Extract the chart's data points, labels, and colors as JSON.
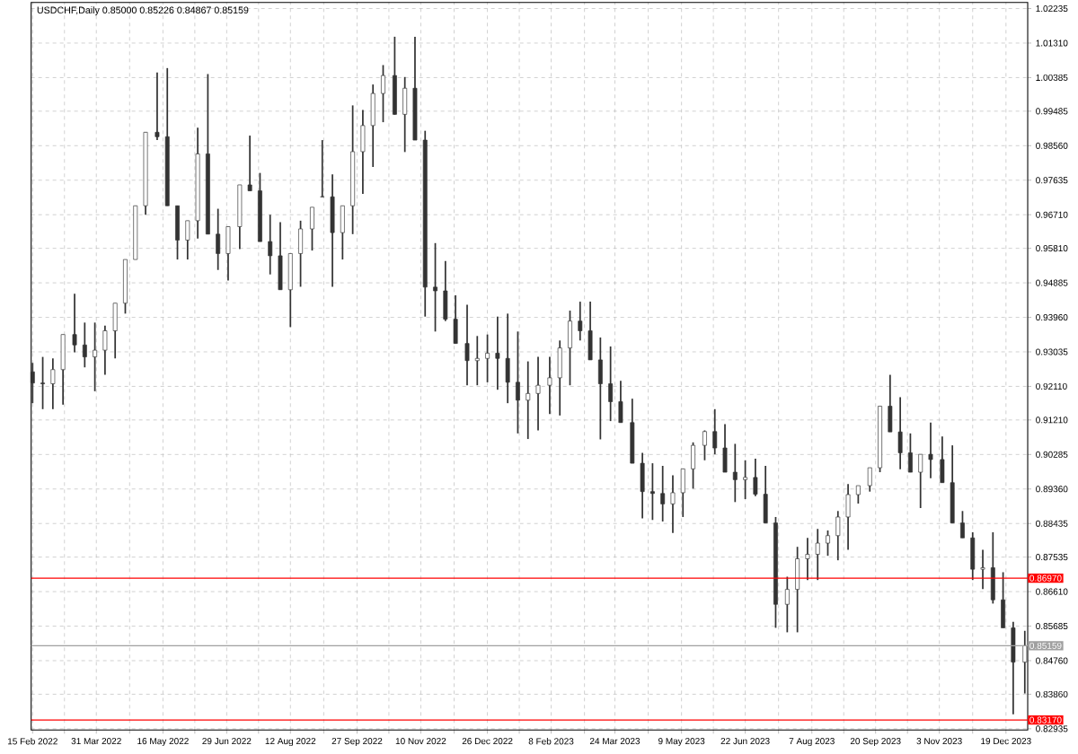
{
  "chart_data": {
    "type": "candlestick",
    "title": "USDCHF,Daily  0.85000 0.85226 0.84867 0.85159",
    "color": "#333333",
    "grid": true,
    "x": [
      "2022-02-15",
      "2022-02-22",
      "2022-03-01",
      "2022-03-08",
      "2022-03-16",
      "2022-03-23",
      "2022-03-30",
      "2022-04-06",
      "2022-04-13",
      "2022-04-20",
      "2022-04-27",
      "2022-05-04",
      "2022-05-12",
      "2022-05-19",
      "2022-05-26",
      "2022-06-02",
      "2022-06-09",
      "2022-06-16",
      "2022-06-23",
      "2022-06-30",
      "2022-07-08",
      "2022-07-15",
      "2022-07-22",
      "2022-07-29",
      "2022-08-05",
      "2022-08-12",
      "2022-08-19",
      "2022-08-27",
      "2022-09-03",
      "2022-09-10",
      "2022-09-17",
      "2022-09-24",
      "2022-10-01",
      "2022-10-08",
      "2022-10-15",
      "2022-10-23",
      "2022-10-30",
      "2022-11-06",
      "2022-11-13",
      "2022-11-20",
      "2022-11-27",
      "2022-12-04",
      "2022-12-12",
      "2022-12-19",
      "2022-12-26",
      "2023-01-02",
      "2023-01-09",
      "2023-01-16",
      "2023-01-23",
      "2023-01-30",
      "2023-02-07",
      "2023-02-14",
      "2023-02-21",
      "2023-02-28",
      "2023-03-07",
      "2023-03-14",
      "2023-03-21",
      "2023-03-28",
      "2023-04-05",
      "2023-04-12",
      "2023-04-19",
      "2023-04-26",
      "2023-05-03",
      "2023-05-10",
      "2023-05-17",
      "2023-05-25",
      "2023-06-01",
      "2023-06-08",
      "2023-06-15",
      "2023-06-22",
      "2023-06-29",
      "2023-07-06",
      "2023-07-13",
      "2023-07-21",
      "2023-07-28",
      "2023-08-04",
      "2023-08-11",
      "2023-08-18",
      "2023-08-25",
      "2023-09-01",
      "2023-09-08",
      "2023-09-16",
      "2023-09-23",
      "2023-09-30",
      "2023-10-07",
      "2023-10-14",
      "2023-10-21",
      "2023-10-28",
      "2023-11-05",
      "2023-11-12",
      "2023-11-19",
      "2023-11-26",
      "2023-12-03",
      "2023-12-10",
      "2023-12-17",
      "2023-12-24",
      "2024-01-01"
    ],
    "ohlc": [
      [
        0.925,
        0.9274,
        0.9166,
        0.922
      ],
      [
        0.922,
        0.929,
        0.915,
        0.9218
      ],
      [
        0.9218,
        0.9286,
        0.915,
        0.9256
      ],
      [
        0.9256,
        0.935,
        0.9162,
        0.935
      ],
      [
        0.935,
        0.9459,
        0.9302,
        0.9322
      ],
      [
        0.9322,
        0.9382,
        0.9262,
        0.929
      ],
      [
        0.929,
        0.9382,
        0.9198,
        0.9308
      ],
      [
        0.9308,
        0.9374,
        0.9242,
        0.936
      ],
      [
        0.936,
        0.9434,
        0.9286,
        0.9434
      ],
      [
        0.9434,
        0.9551,
        0.9406,
        0.9551
      ],
      [
        0.9551,
        0.9695,
        0.9551,
        0.9695
      ],
      [
        0.9695,
        0.9892,
        0.9671,
        0.9892
      ],
      [
        0.9892,
        1.0052,
        0.9871,
        0.988
      ],
      [
        0.988,
        1.0064,
        0.9695,
        0.9695
      ],
      [
        0.9695,
        0.9695,
        0.9551,
        0.9603
      ],
      [
        0.9603,
        0.9655,
        0.9551,
        0.9655
      ],
      [
        0.9655,
        0.9904,
        0.9607,
        0.9834
      ],
      [
        0.9834,
        1.0048,
        0.9619,
        0.9619
      ],
      [
        0.9619,
        0.9687,
        0.9523,
        0.9567
      ],
      [
        0.9567,
        0.9639,
        0.9495,
        0.9639
      ],
      [
        0.9639,
        0.9751,
        0.9579,
        0.9751
      ],
      [
        0.9751,
        0.9883,
        0.9735,
        0.9735
      ],
      [
        0.9735,
        0.9783,
        0.9599,
        0.9599
      ],
      [
        0.9599,
        0.9671,
        0.9511,
        0.9561
      ],
      [
        0.9561,
        0.9651,
        0.947,
        0.947
      ],
      [
        0.947,
        0.9567,
        0.937,
        0.9567
      ],
      [
        0.9567,
        0.9655,
        0.9478,
        0.9633
      ],
      [
        0.9633,
        0.9691,
        0.9575,
        0.9691
      ],
      [
        0.9719,
        0.9871,
        0.9719,
        0.9719
      ],
      [
        0.9719,
        0.9779,
        0.9478,
        0.9623
      ],
      [
        0.9623,
        0.9695,
        0.9551,
        0.9695
      ],
      [
        0.9695,
        0.9964,
        0.9619,
        0.984
      ],
      [
        0.984,
        0.9952,
        0.9727,
        0.991
      ],
      [
        0.991,
        1.002,
        0.9799,
        0.9996
      ],
      [
        0.9996,
        1.0072,
        0.9919,
        1.0044
      ],
      [
        1.0044,
        1.0148,
        0.9939,
        0.994
      ],
      [
        0.994,
        1.004,
        0.9839,
        1.001
      ],
      [
        1.001,
        1.0148,
        0.9871,
        0.9871
      ],
      [
        0.9871,
        0.9896,
        0.9398,
        0.9477
      ],
      [
        0.9477,
        0.9595,
        0.9358,
        0.9467
      ],
      [
        0.9467,
        0.9547,
        0.9386,
        0.9391
      ],
      [
        0.9391,
        0.9455,
        0.9326,
        0.9326
      ],
      [
        0.9326,
        0.943,
        0.9214,
        0.928
      ],
      [
        0.928,
        0.9346,
        0.9214,
        0.9286
      ],
      [
        0.9286,
        0.935,
        0.9222,
        0.93
      ],
      [
        0.93,
        0.9398,
        0.9202,
        0.9286
      ],
      [
        0.9286,
        0.9406,
        0.9166,
        0.9222
      ],
      [
        0.9222,
        0.9358,
        0.9085,
        0.9174
      ],
      [
        0.9174,
        0.9278,
        0.907,
        0.9192
      ],
      [
        0.9192,
        0.929,
        0.9093,
        0.9214
      ],
      [
        0.9214,
        0.929,
        0.9137,
        0.9234
      ],
      [
        0.9234,
        0.9334,
        0.9133,
        0.9314
      ],
      [
        0.9314,
        0.9414,
        0.9214,
        0.9386
      ],
      [
        0.9386,
        0.9438,
        0.9334,
        0.936
      ],
      [
        0.936,
        0.9438,
        0.9282,
        0.9282
      ],
      [
        0.9282,
        0.9342,
        0.9069,
        0.9218
      ],
      [
        0.9218,
        0.9318,
        0.9118,
        0.917
      ],
      [
        0.917,
        0.9226,
        0.9114,
        0.9114
      ],
      [
        0.9114,
        0.9178,
        0.9005,
        0.9005
      ],
      [
        0.9005,
        0.9033,
        0.8857,
        0.8929
      ],
      [
        0.8929,
        0.9005,
        0.8853,
        0.8924
      ],
      [
        0.8924,
        0.8998,
        0.8849,
        0.8896
      ],
      [
        0.8896,
        0.8973,
        0.8818,
        0.8926
      ],
      [
        0.8926,
        0.899,
        0.8861,
        0.899
      ],
      [
        0.899,
        0.9061,
        0.8937,
        0.9053
      ],
      [
        0.9053,
        0.9093,
        0.9013,
        0.909
      ],
      [
        0.909,
        0.915,
        0.9029,
        0.9046
      ],
      [
        0.9046,
        0.911,
        0.8981,
        0.8981
      ],
      [
        0.8981,
        0.9057,
        0.8901,
        0.8961
      ],
      [
        0.8961,
        0.9013,
        0.8909,
        0.8967
      ],
      [
        0.8967,
        0.9017,
        0.8917,
        0.8922
      ],
      [
        0.8922,
        0.8998,
        0.8845,
        0.8845
      ],
      [
        0.8845,
        0.8861,
        0.8564,
        0.8627
      ],
      [
        0.8627,
        0.8701,
        0.8552,
        0.8667
      ],
      [
        0.8667,
        0.8781,
        0.8552,
        0.8749
      ],
      [
        0.8749,
        0.8805,
        0.8692,
        0.8761
      ],
      [
        0.8761,
        0.8829,
        0.8692,
        0.8791
      ],
      [
        0.8791,
        0.8825,
        0.8757,
        0.8811
      ],
      [
        0.8811,
        0.8877,
        0.8745,
        0.8861
      ],
      [
        0.8861,
        0.8949,
        0.8773,
        0.8921
      ],
      [
        0.8921,
        0.8945,
        0.8897,
        0.8945
      ],
      [
        0.8945,
        0.8993,
        0.8929,
        0.8993
      ],
      [
        0.8993,
        0.9158,
        0.8981,
        0.9158
      ],
      [
        0.9158,
        0.9242,
        0.9089,
        0.9089
      ],
      [
        0.9089,
        0.9182,
        0.8989,
        0.9033
      ],
      [
        0.9033,
        0.9085,
        0.8981,
        0.8981
      ],
      [
        0.8981,
        0.9029,
        0.8885,
        0.9029
      ],
      [
        0.9029,
        0.9114,
        0.8965,
        0.9015
      ],
      [
        0.9015,
        0.9077,
        0.8953,
        0.8953
      ],
      [
        0.8953,
        0.9053,
        0.8845,
        0.8845
      ],
      [
        0.8845,
        0.8877,
        0.8805,
        0.8805
      ],
      [
        0.8805,
        0.882,
        0.8692,
        0.8721
      ],
      [
        0.8721,
        0.8773,
        0.8668,
        0.8725
      ],
      [
        0.8725,
        0.882,
        0.8629,
        0.8639
      ],
      [
        0.8639,
        0.8713,
        0.8564,
        0.8564
      ],
      [
        0.8564,
        0.858,
        0.8332,
        0.8472
      ],
      [
        0.8472,
        0.8556,
        0.8388,
        0.8516
      ]
    ],
    "xlim": [
      "2022-02-14",
      "2024-01-03"
    ],
    "xticks": [
      {
        "value": "2022-02-15",
        "label": "15 Feb 2022"
      },
      {
        "value": "2022-03-09",
        "label": null
      },
      {
        "value": "2022-03-31",
        "label": "31 Mar 2022"
      },
      {
        "value": "2022-04-23",
        "label": null
      },
      {
        "value": "2022-05-16",
        "label": "16 May 2022"
      },
      {
        "value": "2022-06-07",
        "label": null
      },
      {
        "value": "2022-06-29",
        "label": "29 Jun 2022"
      },
      {
        "value": "2022-07-21",
        "label": null
      },
      {
        "value": "2022-08-12",
        "label": "12 Aug 2022"
      },
      {
        "value": "2022-09-04",
        "label": null
      },
      {
        "value": "2022-09-27",
        "label": "27 Sep 2022"
      },
      {
        "value": "2022-10-19",
        "label": null
      },
      {
        "value": "2022-11-10",
        "label": "10 Nov 2022"
      },
      {
        "value": "2022-12-03",
        "label": null
      },
      {
        "value": "2022-12-26",
        "label": "26 Dec 2022"
      },
      {
        "value": "2023-01-17",
        "label": null
      },
      {
        "value": "2023-02-08",
        "label": "8 Feb 2023"
      },
      {
        "value": "2023-03-03",
        "label": null
      },
      {
        "value": "2023-03-24",
        "label": "24 Mar 2023"
      },
      {
        "value": "2023-04-16",
        "label": null
      },
      {
        "value": "2023-05-09",
        "label": "9 May 2023"
      },
      {
        "value": "2023-05-31",
        "label": null
      },
      {
        "value": "2023-06-22",
        "label": "22 Jun 2023"
      },
      {
        "value": "2023-07-15",
        "label": null
      },
      {
        "value": "2023-08-07",
        "label": "7 Aug 2023"
      },
      {
        "value": "2023-08-29",
        "label": null
      },
      {
        "value": "2023-09-20",
        "label": "20 Sep 2023"
      },
      {
        "value": "2023-10-12",
        "label": null
      },
      {
        "value": "2023-11-03",
        "label": "3 Nov 2023"
      },
      {
        "value": "2023-11-26",
        "label": null
      },
      {
        "value": "2023-12-19",
        "label": "19 Dec 2023"
      }
    ],
    "ylim": [
      0.829,
      1.024
    ],
    "yticks": [
      {
        "value": 0.82935,
        "label": "0.82935"
      },
      {
        "value": 0.8386,
        "label": "0.83860"
      },
      {
        "value": 0.8476,
        "label": "0.84760"
      },
      {
        "value": 0.85685,
        "label": "0.85685"
      },
      {
        "value": 0.8661,
        "label": "0.86610"
      },
      {
        "value": 0.87535,
        "label": "0.87535"
      },
      {
        "value": 0.88435,
        "label": "0.88435"
      },
      {
        "value": 0.8936,
        "label": "0.89360"
      },
      {
        "value": 0.90285,
        "label": "0.90285"
      },
      {
        "value": 0.9121,
        "label": "0.91210"
      },
      {
        "value": 0.9211,
        "label": "0.92110"
      },
      {
        "value": 0.93035,
        "label": "0.93035"
      },
      {
        "value": 0.9396,
        "label": "0.93960"
      },
      {
        "value": 0.94885,
        "label": "0.94885"
      },
      {
        "value": 0.9581,
        "label": "0.95810"
      },
      {
        "value": 0.9671,
        "label": "0.96710"
      },
      {
        "value": 0.97635,
        "label": "0.97635"
      },
      {
        "value": 0.9856,
        "label": "0.98560"
      },
      {
        "value": 0.99485,
        "label": "0.99485"
      },
      {
        "value": 1.00385,
        "label": "1.00385"
      },
      {
        "value": 1.0131,
        "label": "1.01310"
      },
      {
        "value": 1.02235,
        "label": "1.02235"
      }
    ],
    "ref_lines": [
      {
        "axis": "y",
        "value": 0.8697,
        "label": "0.86970",
        "color": "#ff0000"
      },
      {
        "axis": "y",
        "value": 0.85159,
        "label": "0.85159",
        "color": "#a0a0a0"
      },
      {
        "axis": "y",
        "value": 0.8317,
        "label": "0.83170",
        "color": "#ff0000"
      }
    ]
  }
}
